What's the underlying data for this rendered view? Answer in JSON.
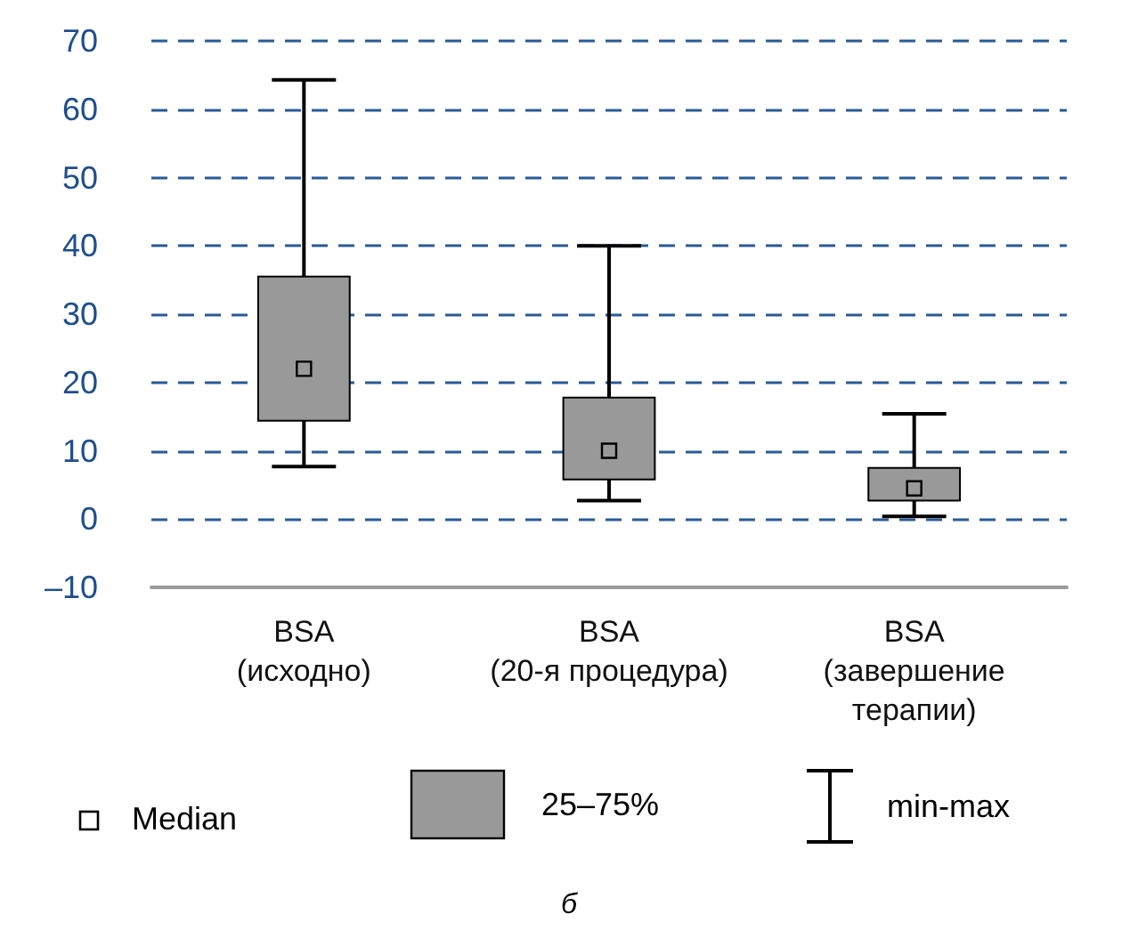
{
  "chart_data": {
    "type": "box",
    "categories": [
      "BSA\n(исходно)",
      "BSA\n(20-я процедура)",
      "BSA\n(завершение\nтерапии)"
    ],
    "boxes": [
      {
        "low": 7.7,
        "q1": 14.4,
        "median": 22,
        "q3": 35.5,
        "high": 64.3
      },
      {
        "low": 2.7,
        "q1": 5.8,
        "median": 10,
        "q3": 17.8,
        "high": 40
      },
      {
        "low": 0.4,
        "q1": 2.7,
        "median": 4.5,
        "q3": 7.5,
        "high": 15.4
      }
    ],
    "color": "#999999",
    "ylim": [
      -10,
      70
    ],
    "yticks": [
      {
        "value": -10,
        "label": "–10"
      },
      0,
      10,
      20,
      30,
      40,
      50,
      60,
      70
    ],
    "grid": "y",
    "annotations": [
      "Median",
      "25–75%",
      "min-max",
      "б"
    ]
  }
}
